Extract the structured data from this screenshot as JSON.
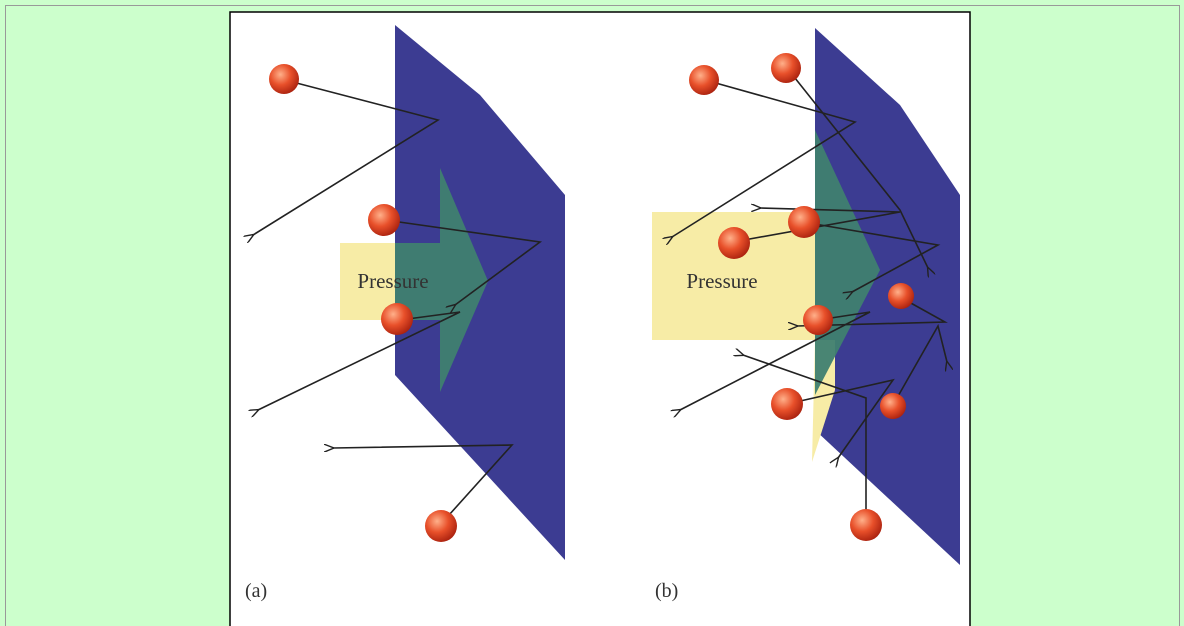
{
  "panels": [
    {
      "label": "(a)",
      "arrow_label": "Pressure"
    },
    {
      "label": "(b)",
      "arrow_label": "Pressure"
    }
  ]
}
